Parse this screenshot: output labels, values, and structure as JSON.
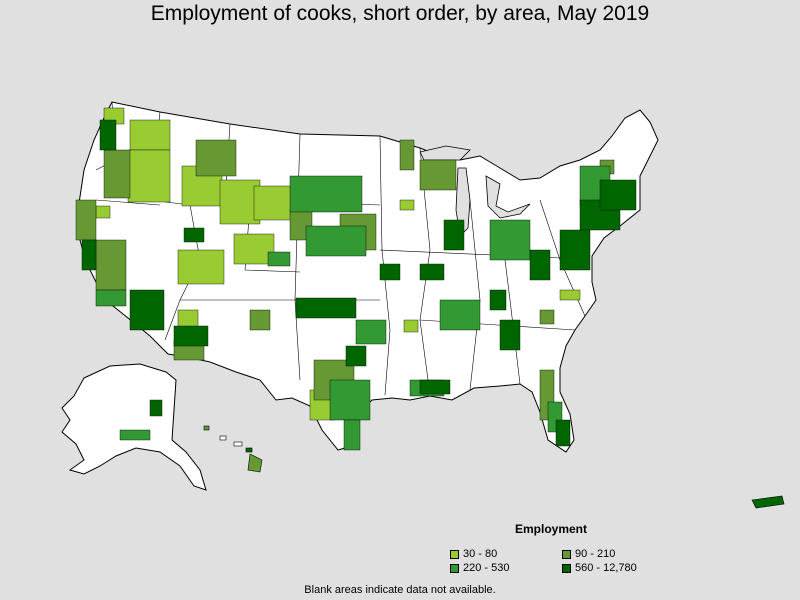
{
  "title": "Employment of cooks, short order, by area, May 2019",
  "legend": {
    "title": "Employment",
    "items": [
      {
        "label": "30 - 80",
        "color": "#99cc33"
      },
      {
        "label": "90 - 210",
        "color": "#669933"
      },
      {
        "label": "220 - 530",
        "color": "#339933"
      },
      {
        "label": "560 - 12,780",
        "color": "#006600"
      }
    ]
  },
  "footnote": "Blank areas indicate data not available.",
  "colors": {
    "background": "#e0e0e0",
    "blank": "#ffffff",
    "border": "#000000"
  }
}
